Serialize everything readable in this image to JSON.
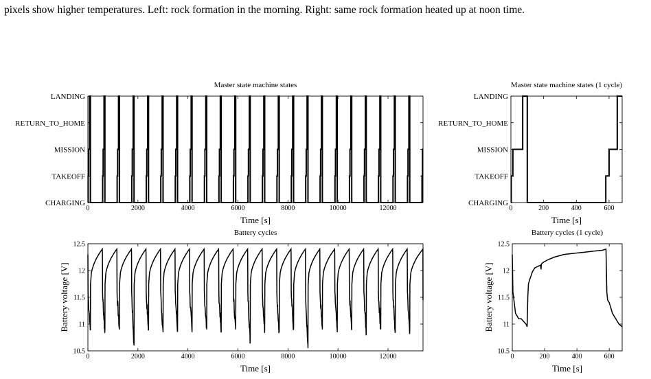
{
  "caption": "pixels show higher temperatures. Left: rock formation in the morning. Right: same rock formation heated up at noon time.",
  "chart_data": [
    {
      "id": "states_full",
      "type": "line",
      "title": "Master state machine states",
      "xlabel": "Time [s]",
      "ylabel": "",
      "xlim": [
        0,
        13400
      ],
      "xticks": [
        0,
        2000,
        4000,
        6000,
        8000,
        10000,
        12000
      ],
      "categories": [
        "CHARGING",
        "TAKEOFF",
        "MISSION",
        "RETURN_TO_HOME",
        "LANDING"
      ],
      "ylim": [
        0,
        4
      ],
      "cycle_starts_s": [
        0,
        580,
        1160,
        1745,
        2325,
        2905,
        3485,
        4065,
        4650,
        5230,
        5810,
        6390,
        6970,
        7550,
        8125,
        8700,
        9275,
        9870,
        10450,
        11030,
        11610,
        12190,
        12770,
        13350
      ],
      "cycle_pattern": {
        "takeoff_offset_s": 10,
        "mission_offset_s": 30,
        "landing_offset_s": 65,
        "charging_offset_s": 100
      }
    },
    {
      "id": "states_one",
      "type": "line",
      "title": "Master state machine states (1 cycle)",
      "xlabel": "Time [s]",
      "ylabel": "",
      "xlim": [
        0,
        680
      ],
      "xticks": [
        0,
        200,
        400,
        600
      ],
      "categories": [
        "CHARGING",
        "TAKEOFF",
        "MISSION",
        "RETURN_TO_HOME",
        "LANDING"
      ],
      "ylim": [
        0,
        4
      ],
      "x": [
        0,
        2,
        2,
        12,
        12,
        72,
        72,
        100,
        100,
        580,
        580,
        600,
        600,
        650,
        650,
        680
      ],
      "y": [
        0,
        0,
        1,
        1,
        2,
        2,
        4,
        4,
        0,
        0,
        1,
        1,
        2,
        2,
        4,
        4
      ]
    },
    {
      "id": "battery_full",
      "type": "line",
      "title": "Battery cycles",
      "xlabel": "Time [s]",
      "ylabel": "Battery voltage [V]",
      "xlim": [
        0,
        13400
      ],
      "ylim": [
        10.5,
        12.5
      ],
      "xticks": [
        0,
        2000,
        4000,
        6000,
        8000,
        10000,
        12000
      ],
      "yticks": [
        10.5,
        11,
        11.5,
        12,
        12.5
      ],
      "cycle_starts_s": [
        0,
        580,
        1160,
        1745,
        2325,
        2905,
        3485,
        4065,
        4650,
        5230,
        5810,
        6390,
        6970,
        7550,
        8125,
        8700,
        9275,
        9870,
        10450,
        11030,
        11610,
        12190,
        12770
      ],
      "cycle_minima_v": [
        10.9,
        10.85,
        10.9,
        10.6,
        10.9,
        10.85,
        10.9,
        10.85,
        10.9,
        10.85,
        10.9,
        10.7,
        10.9,
        10.85,
        10.9,
        10.55,
        10.9,
        10.85,
        10.9,
        10.85,
        10.9,
        10.85,
        10.9
      ],
      "cycle_peaks_v": [
        12.4,
        12.4,
        12.4,
        12.4,
        12.4,
        12.4,
        12.4,
        12.4,
        12.4,
        12.4,
        12.4,
        12.4,
        12.4,
        12.4,
        12.4,
        12.4,
        12.4,
        12.4,
        12.4,
        12.4,
        12.4,
        12.4,
        12.4
      ]
    },
    {
      "id": "battery_one",
      "type": "line",
      "title": "Battery cycles (1 cycle)",
      "xlabel": "Time [s]",
      "ylabel": "Battery voltage [V]",
      "xlim": [
        0,
        680
      ],
      "ylim": [
        10.5,
        12.5
      ],
      "xticks": [
        0,
        200,
        400,
        600
      ],
      "yticks": [
        10.5,
        11,
        11.5,
        12,
        12.5
      ],
      "x": [
        0,
        4,
        8,
        14,
        20,
        30,
        40,
        55,
        70,
        85,
        92,
        96,
        100,
        110,
        125,
        140,
        160,
        175,
        178,
        180,
        190,
        220,
        260,
        320,
        380,
        440,
        500,
        560,
        580,
        585,
        590,
        600,
        620,
        640,
        660,
        680
      ],
      "y": [
        12.3,
        11.6,
        11.5,
        11.35,
        11.2,
        11.15,
        11.1,
        11.1,
        11.05,
        11.0,
        10.95,
        11.5,
        11.75,
        11.85,
        11.98,
        12.05,
        12.08,
        12.1,
        12.02,
        12.12,
        12.15,
        12.2,
        12.25,
        12.3,
        12.32,
        12.34,
        12.36,
        12.38,
        12.4,
        11.6,
        11.45,
        11.4,
        11.2,
        11.1,
        11.0,
        10.95
      ]
    }
  ]
}
